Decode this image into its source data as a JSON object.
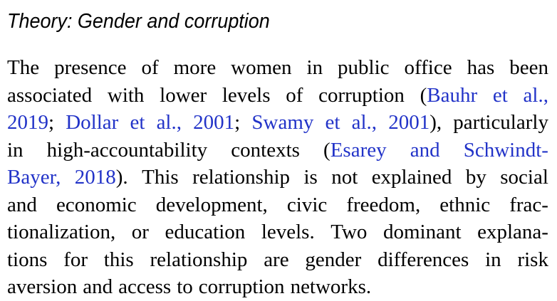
{
  "heading": "Theory: Gender and corruption",
  "colors": {
    "text": "#000000",
    "citation_link": "#2233c8",
    "background": "#ffffff"
  },
  "lines": [
    {
      "segments": [
        {
          "text": "The presence of more women in public office has been",
          "cite": false
        }
      ]
    },
    {
      "segments": [
        {
          "text": "associated with lower levels of corruption (",
          "cite": false
        },
        {
          "text": "Bauhr et al.,",
          "cite": true
        }
      ]
    },
    {
      "segments": [
        {
          "text": "2019",
          "cite": true
        },
        {
          "text": "; ",
          "cite": false
        },
        {
          "text": "Dollar et al., 2001",
          "cite": true
        },
        {
          "text": "; ",
          "cite": false
        },
        {
          "text": "Swamy et al., 2001",
          "cite": true
        },
        {
          "text": "), particularly",
          "cite": false
        }
      ]
    },
    {
      "segments": [
        {
          "text": "in high-accountability contexts (",
          "cite": false
        },
        {
          "text": "Esarey and Schwindt-",
          "cite": true
        }
      ]
    },
    {
      "segments": [
        {
          "text": "Bayer, 2018",
          "cite": true
        },
        {
          "text": "). This relationship is not explained by social",
          "cite": false
        }
      ]
    },
    {
      "segments": [
        {
          "text": "and economic development, civic freedom, ethnic frac-",
          "cite": false
        }
      ]
    },
    {
      "segments": [
        {
          "text": "tionalization, or education levels. Two dominant explana-",
          "cite": false
        }
      ]
    },
    {
      "segments": [
        {
          "text": "tions for this relationship are gender differences in risk",
          "cite": false
        }
      ]
    },
    {
      "segments": [
        {
          "text": "aversion and access to corruption networks.",
          "cite": false
        }
      ]
    }
  ]
}
